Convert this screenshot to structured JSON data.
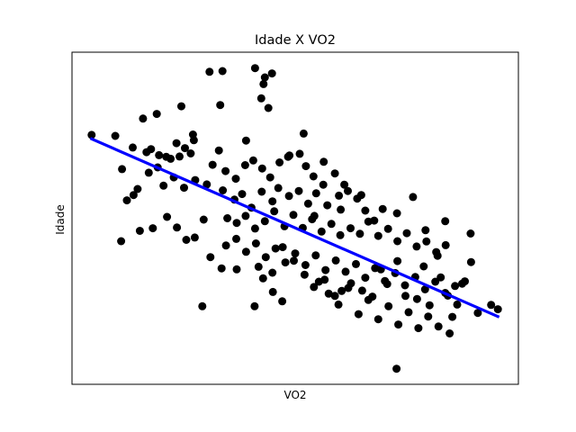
{
  "chart_data": {
    "type": "scatter",
    "title": "Idade X VO2",
    "xlabel": "VO2",
    "ylabel": "Idade",
    "xticks": false,
    "yticks": false,
    "xlim": [
      0,
      100
    ],
    "ylim": [
      0,
      100
    ],
    "grid": false,
    "colors": {
      "points": "#000000",
      "fit_line": "#0000ff",
      "frame": "#000000",
      "background": "#ffffff"
    },
    "fit_line": {
      "x": [
        4.4,
        95.4
      ],
      "y": [
        73.9,
        20.4
      ]
    },
    "points": [
      [
        4.4,
        75.1
      ],
      [
        9.7,
        74.8
      ],
      [
        13.6,
        71.3
      ],
      [
        16.7,
        69.9
      ],
      [
        19.5,
        69.0
      ],
      [
        22.1,
        67.9
      ],
      [
        24.1,
        68.6
      ],
      [
        26.6,
        69.5
      ],
      [
        13.8,
        57.0
      ],
      [
        11.2,
        64.8
      ],
      [
        17.7,
        70.8
      ],
      [
        19.2,
        65.3
      ],
      [
        21.1,
        68.5
      ],
      [
        23.4,
        72.6
      ],
      [
        25.3,
        71.1
      ],
      [
        27.3,
        73.5
      ],
      [
        12.3,
        55.4
      ],
      [
        14.7,
        58.8
      ],
      [
        17.2,
        63.7
      ],
      [
        20.5,
        59.8
      ],
      [
        22.8,
        62.3
      ],
      [
        25.1,
        59.2
      ],
      [
        27.6,
        61.5
      ],
      [
        30.2,
        60.2
      ],
      [
        11.0,
        43.1
      ],
      [
        15.2,
        46.2
      ],
      [
        18.1,
        47.0
      ],
      [
        21.3,
        50.4
      ],
      [
        23.5,
        47.2
      ],
      [
        25.6,
        43.5
      ],
      [
        27.5,
        44.2
      ],
      [
        29.5,
        49.6
      ],
      [
        15.9,
        80.0
      ],
      [
        19.0,
        81.4
      ],
      [
        24.5,
        83.7
      ],
      [
        27.1,
        75.2
      ],
      [
        30.8,
        94.1
      ],
      [
        33.7,
        94.3
      ],
      [
        33.2,
        84.1
      ],
      [
        39.0,
        73.4
      ],
      [
        41.0,
        95.2
      ],
      [
        42.4,
        86.1
      ],
      [
        43.2,
        92.4
      ],
      [
        44.8,
        93.6
      ],
      [
        44.0,
        83.2
      ],
      [
        42.9,
        90.4
      ],
      [
        51.9,
        75.5
      ],
      [
        48.7,
        68.9
      ],
      [
        32.9,
        70.4
      ],
      [
        31.5,
        66.1
      ],
      [
        34.4,
        64.2
      ],
      [
        36.7,
        61.9
      ],
      [
        38.8,
        66.0
      ],
      [
        40.6,
        67.4
      ],
      [
        42.6,
        65.0
      ],
      [
        44.4,
        62.3
      ],
      [
        46.5,
        66.8
      ],
      [
        48.4,
        68.5
      ],
      [
        51.0,
        69.4
      ],
      [
        52.4,
        65.7
      ],
      [
        54.1,
        62.6
      ],
      [
        56.4,
        67.0
      ],
      [
        58.9,
        63.5
      ],
      [
        61.0,
        60.1
      ],
      [
        33.8,
        58.4
      ],
      [
        36.4,
        55.6
      ],
      [
        38.1,
        57.3
      ],
      [
        40.2,
        53.2
      ],
      [
        42.5,
        58.0
      ],
      [
        44.9,
        55.1
      ],
      [
        46.2,
        59.1
      ],
      [
        48.6,
        56.7
      ],
      [
        50.8,
        58.2
      ],
      [
        52.9,
        54.4
      ],
      [
        54.7,
        57.5
      ],
      [
        57.2,
        53.9
      ],
      [
        59.8,
        56.8
      ],
      [
        61.8,
        58.2
      ],
      [
        63.9,
        55.9
      ],
      [
        65.7,
        52.3
      ],
      [
        34.8,
        50.0
      ],
      [
        36.9,
        48.6
      ],
      [
        38.9,
        50.7
      ],
      [
        41.0,
        46.9
      ],
      [
        43.2,
        49.1
      ],
      [
        45.3,
        52.1
      ],
      [
        47.6,
        47.6
      ],
      [
        49.6,
        51.0
      ],
      [
        51.7,
        47.1
      ],
      [
        53.8,
        49.7
      ],
      [
        55.9,
        46.0
      ],
      [
        58.1,
        48.3
      ],
      [
        60.1,
        44.9
      ],
      [
        62.4,
        47.0
      ],
      [
        64.5,
        45.3
      ],
      [
        66.4,
        49.0
      ],
      [
        68.6,
        44.7
      ],
      [
        70.8,
        46.8
      ],
      [
        72.9,
        43.1
      ],
      [
        75.0,
        45.5
      ],
      [
        77.2,
        41.5
      ],
      [
        79.4,
        43.0
      ],
      [
        81.6,
        39.8
      ],
      [
        83.7,
        41.9
      ],
      [
        34.5,
        41.8
      ],
      [
        36.8,
        43.8
      ],
      [
        39.0,
        39.9
      ],
      [
        41.2,
        42.4
      ],
      [
        43.4,
        38.3
      ],
      [
        45.6,
        40.9
      ],
      [
        47.8,
        36.7
      ],
      [
        50.0,
        39.4
      ],
      [
        52.3,
        35.9
      ],
      [
        54.6,
        38.8
      ],
      [
        56.8,
        34.4
      ],
      [
        59.1,
        37.3
      ],
      [
        61.3,
        33.9
      ],
      [
        63.6,
        36.2
      ],
      [
        65.7,
        32.1
      ],
      [
        67.9,
        35.0
      ],
      [
        70.1,
        31.1
      ],
      [
        72.4,
        33.5
      ],
      [
        74.6,
        29.8
      ],
      [
        76.9,
        32.3
      ],
      [
        79.1,
        28.6
      ],
      [
        81.4,
        30.9
      ],
      [
        83.6,
        27.5
      ],
      [
        85.8,
        29.6
      ],
      [
        45.0,
        27.8
      ],
      [
        47.1,
        25.0
      ],
      [
        55.3,
        30.9
      ],
      [
        57.5,
        27.3
      ],
      [
        59.7,
        24.0
      ],
      [
        61.9,
        29.0
      ],
      [
        64.2,
        21.1
      ],
      [
        66.4,
        25.4
      ],
      [
        68.6,
        19.6
      ],
      [
        70.9,
        23.5
      ],
      [
        73.1,
        18.0
      ],
      [
        75.4,
        21.7
      ],
      [
        77.6,
        16.9
      ],
      [
        79.8,
        20.4
      ],
      [
        82.1,
        17.4
      ],
      [
        84.6,
        15.3
      ],
      [
        88.0,
        31.0
      ],
      [
        89.4,
        36.8
      ],
      [
        90.9,
        21.5
      ],
      [
        93.9,
        23.9
      ],
      [
        95.4,
        22.6
      ],
      [
        89.3,
        45.4
      ],
      [
        83.6,
        49.1
      ],
      [
        79.2,
        46.4
      ],
      [
        76.4,
        56.4
      ],
      [
        72.8,
        51.5
      ],
      [
        69.6,
        52.8
      ],
      [
        67.7,
        49.3
      ],
      [
        64.8,
        57.0
      ],
      [
        60.2,
        52.6
      ],
      [
        56.3,
        60.1
      ],
      [
        54.3,
        50.7
      ],
      [
        31.0,
        38.3
      ],
      [
        33.5,
        34.9
      ],
      [
        36.9,
        34.6
      ],
      [
        41.8,
        35.4
      ],
      [
        42.8,
        31.9
      ],
      [
        44.9,
        33.6
      ],
      [
        47.2,
        41.3
      ],
      [
        49.7,
        37.2
      ],
      [
        52.1,
        33.0
      ],
      [
        54.2,
        29.3
      ],
      [
        56.6,
        31.5
      ],
      [
        58.9,
        26.6
      ],
      [
        60.4,
        28.1
      ],
      [
        62.5,
        30.4
      ],
      [
        65.0,
        28.2
      ],
      [
        67.3,
        26.4
      ],
      [
        69.2,
        34.6
      ],
      [
        70.6,
        30.2
      ],
      [
        72.9,
        37.1
      ],
      [
        74.7,
        26.6
      ],
      [
        77.3,
        25.7
      ],
      [
        78.8,
        35.5
      ],
      [
        80.1,
        23.8
      ],
      [
        81.9,
        38.7
      ],
      [
        84.2,
        26.7
      ],
      [
        86.3,
        24.0
      ],
      [
        87.4,
        30.3
      ],
      [
        85.2,
        20.3
      ],
      [
        82.6,
        32.2
      ],
      [
        72.7,
        4.7
      ],
      [
        29.2,
        23.5
      ],
      [
        40.9,
        23.5
      ]
    ]
  }
}
